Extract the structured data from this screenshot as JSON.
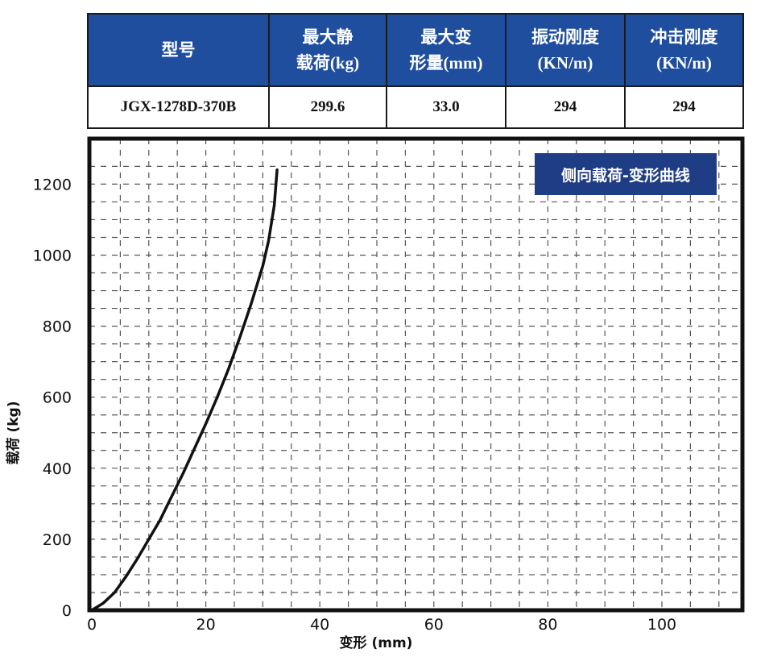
{
  "spec_table": {
    "headers": [
      [
        "型号"
      ],
      [
        "最大静",
        "载荷(kg)"
      ],
      [
        "最大变",
        "形量(mm)"
      ],
      [
        "振动刚度",
        "(KN/m)"
      ],
      [
        "冲击刚度",
        "(KN/m)"
      ]
    ],
    "row": [
      "JGX-1278D-370B",
      "299.6",
      "33.0",
      "294",
      "294"
    ]
  },
  "chart_data": {
    "type": "line",
    "title": "侧向载荷-变形曲线",
    "xlabel": "变形 (mm)",
    "ylabel": "载荷 (kg)",
    "xlim": [
      0,
      115
    ],
    "ylim": [
      0,
      1300
    ],
    "x_ticks": [
      0,
      20,
      40,
      60,
      80,
      100
    ],
    "y_ticks": [
      0,
      200,
      400,
      600,
      800,
      1000,
      1200
    ],
    "x_tick_labels": [
      "0",
      "20",
      "40",
      "60",
      "80",
      "100"
    ],
    "y_tick_labels": [
      "0",
      "200",
      "400",
      "600",
      "800",
      "1000",
      "1200"
    ],
    "grid": true,
    "legend_position": "top-right",
    "series": [
      {
        "name": "侧向载荷-变形曲线",
        "color": "#111111",
        "x": [
          0,
          2,
          4,
          6,
          8,
          10,
          12,
          14,
          16,
          18,
          20,
          22,
          24,
          26,
          28,
          30,
          31,
          32,
          32.5
        ],
        "y": [
          0,
          20,
          50,
          95,
          145,
          200,
          255,
          320,
          385,
          455,
          525,
          600,
          680,
          770,
          865,
          970,
          1040,
          1140,
          1240
        ]
      }
    ],
    "colors": {
      "legend_bg": "#1f3d85",
      "header_bg": "#1f4e9f",
      "line": "#111111"
    }
  }
}
